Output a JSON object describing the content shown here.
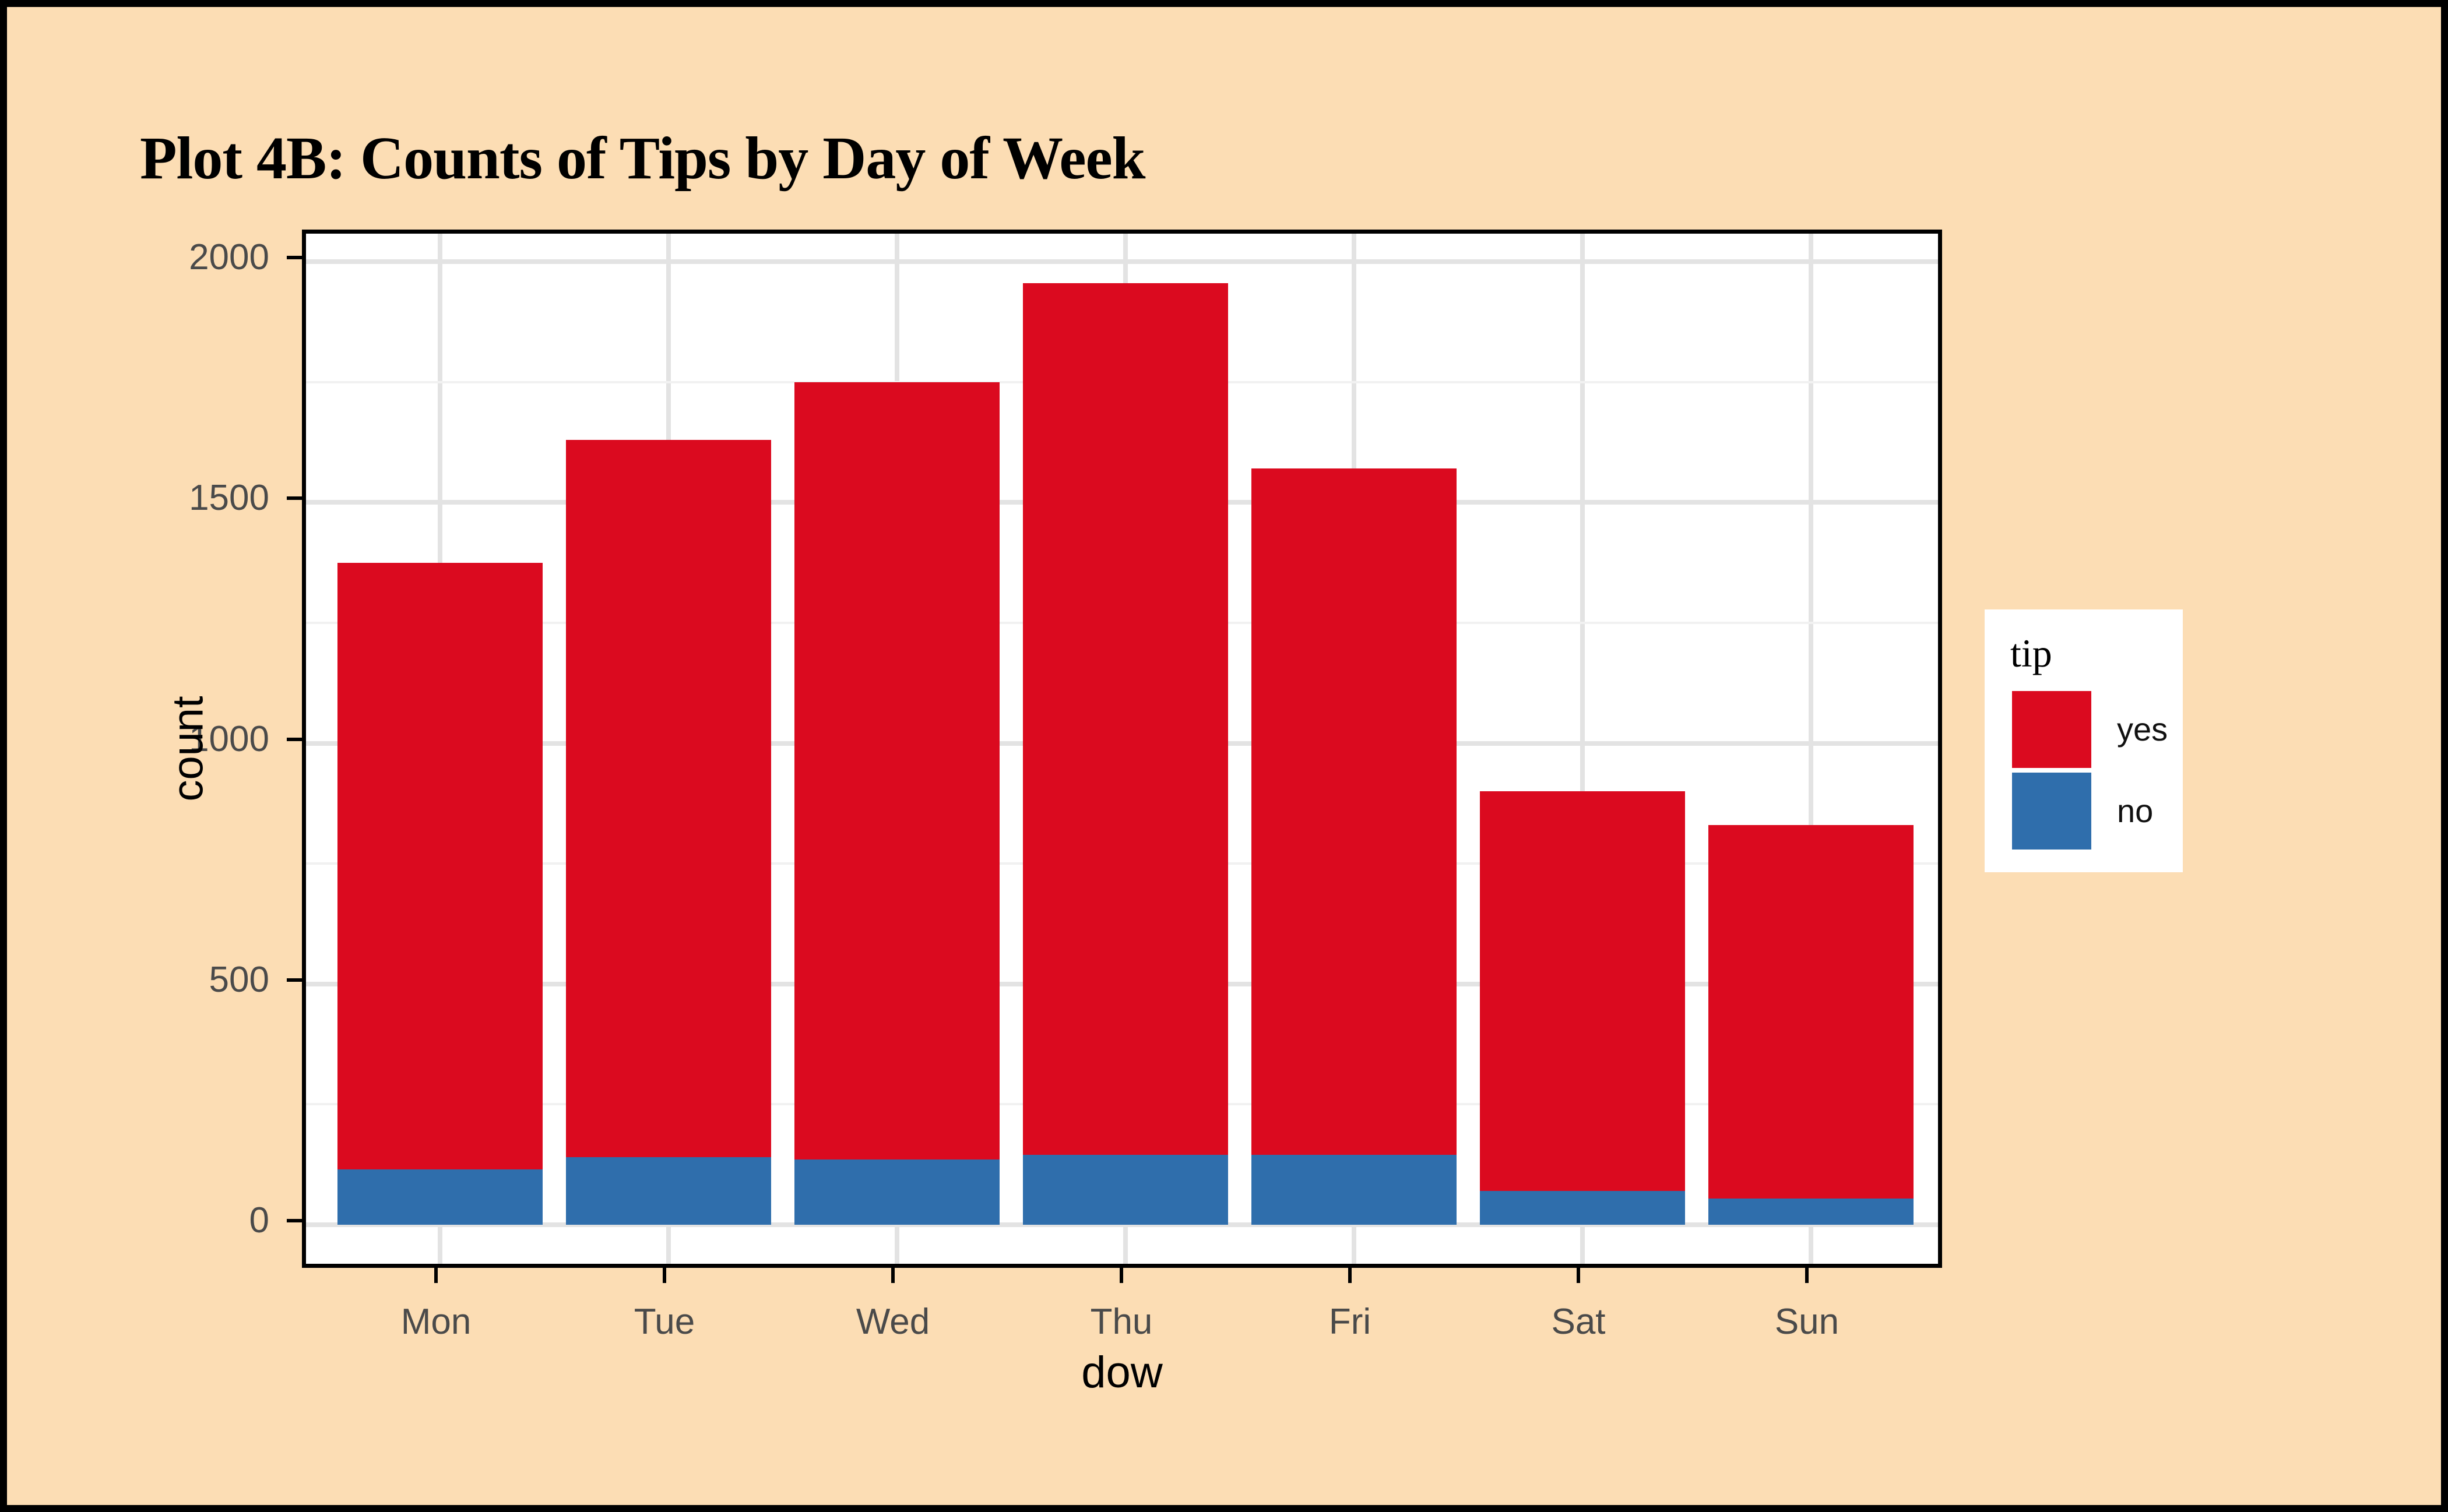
{
  "title": "Plot 4B: Counts of Tips by Day of Week",
  "colors": {
    "background": "#FCDDB4",
    "frame": "#000000",
    "panel": "#FFFFFF",
    "grid_major": "#E3E3E3",
    "grid_minor": "#F1F1F1",
    "tick_label": "#4A4A4A",
    "yes": "#DB0A1F",
    "no": "#2F6EAC"
  },
  "legend": {
    "title": "tip",
    "entries": [
      {
        "label": "yes",
        "color": "#DB0A1F"
      },
      {
        "label": "no",
        "color": "#2F6EAC"
      }
    ]
  },
  "chart_data": {
    "type": "bar",
    "stacked": true,
    "title": "Plot 4B: Counts of Tips by Day of Week",
    "xlabel": "dow",
    "ylabel": "count",
    "categories": [
      "Mon",
      "Tue",
      "Wed",
      "Thu",
      "Fri",
      "Sat",
      "Sun"
    ],
    "series": [
      {
        "name": "no",
        "color": "#2F6EAC",
        "values": [
          115,
          140,
          135,
          145,
          145,
          70,
          55
        ]
      },
      {
        "name": "yes",
        "color": "#DB0A1F",
        "values": [
          1260,
          1490,
          1615,
          1810,
          1425,
          830,
          775
        ]
      }
    ],
    "totals": [
      1375,
      1630,
      1750,
      1955,
      1570,
      900,
      830
    ],
    "ylim": [
      0,
      2000
    ],
    "yticks_major": [
      0,
      500,
      1000,
      1500,
      2000
    ],
    "yticks_minor": [
      250,
      750,
      1250,
      1750
    ],
    "grid": true,
    "legend_position": "right"
  }
}
